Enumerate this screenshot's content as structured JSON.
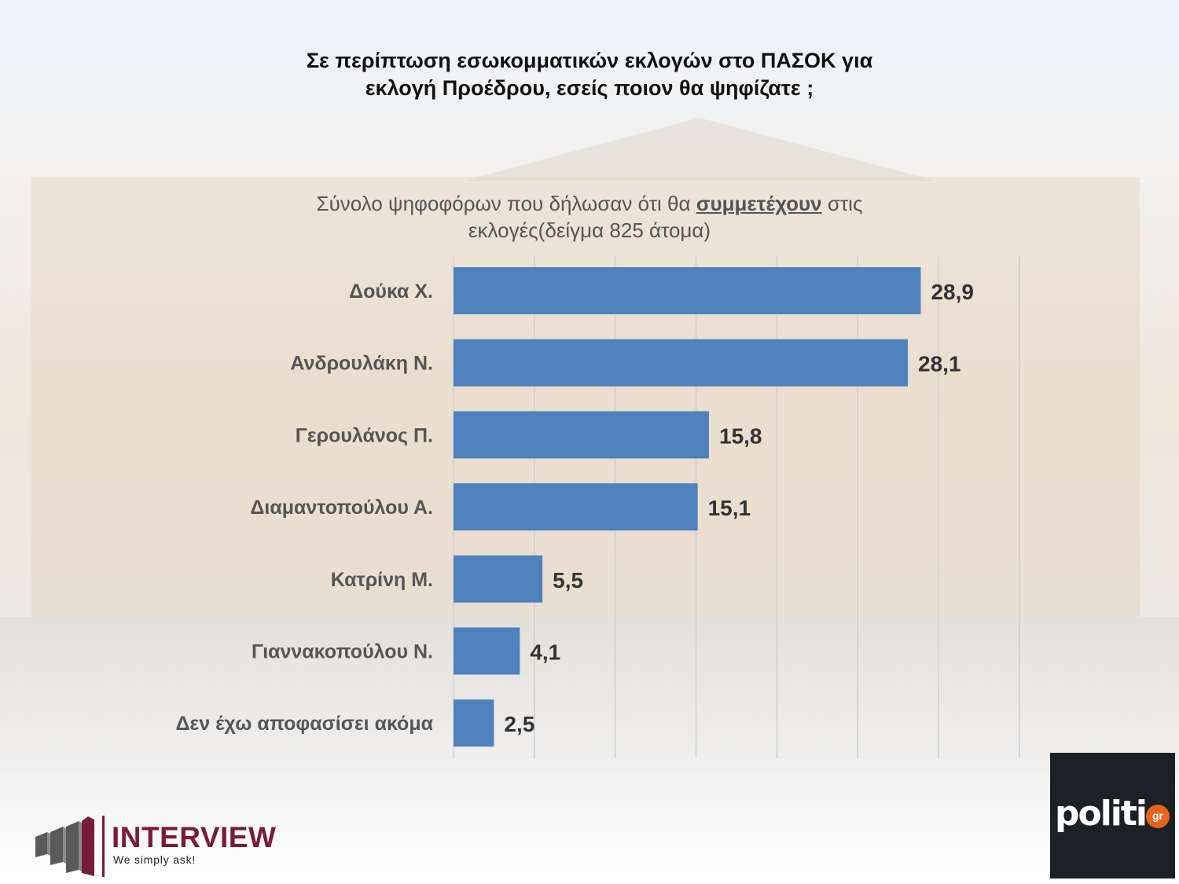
{
  "header": {
    "title_line1": "Σε περίπτωση εσωκομματικών εκλογών στο ΠΑΣΟΚ για",
    "title_line2": "εκλογή Προέδρου, εσείς ποιον θα ψηφίζατε ;"
  },
  "subtitle": {
    "before": "Σύνολο ψηφοφόρων που δήλωσαν ότι θα ",
    "emphasis": "συμμετέχουν",
    "after": " στις",
    "line2": "εκλογές(δείγμα 825 άτομα)"
  },
  "chart_data": {
    "type": "bar",
    "orientation": "horizontal",
    "categories": [
      "Δούκα Χ.",
      "Ανδρουλάκη Ν.",
      "Γερουλάνος Π.",
      "Διαμαντοπούλου Α.",
      "Κατρίνη Μ.",
      "Γιαννακοπούλου Ν.",
      "Δεν έχω αποφασίσει ακόμα"
    ],
    "values": [
      28.9,
      28.1,
      15.8,
      15.1,
      5.5,
      4.1,
      2.5
    ],
    "value_labels": [
      "28,9",
      "28,1",
      "15,8",
      "15,1",
      "5,5",
      "4,1",
      "2,5"
    ],
    "xlim": [
      0,
      35
    ],
    "grid": true,
    "bar_color": "#4f81bd"
  },
  "logos": {
    "interview_name": "INTERVIEW",
    "interview_tagline": "We simply ask!",
    "politic_word": "politic",
    "politic_suffix": "gr"
  }
}
